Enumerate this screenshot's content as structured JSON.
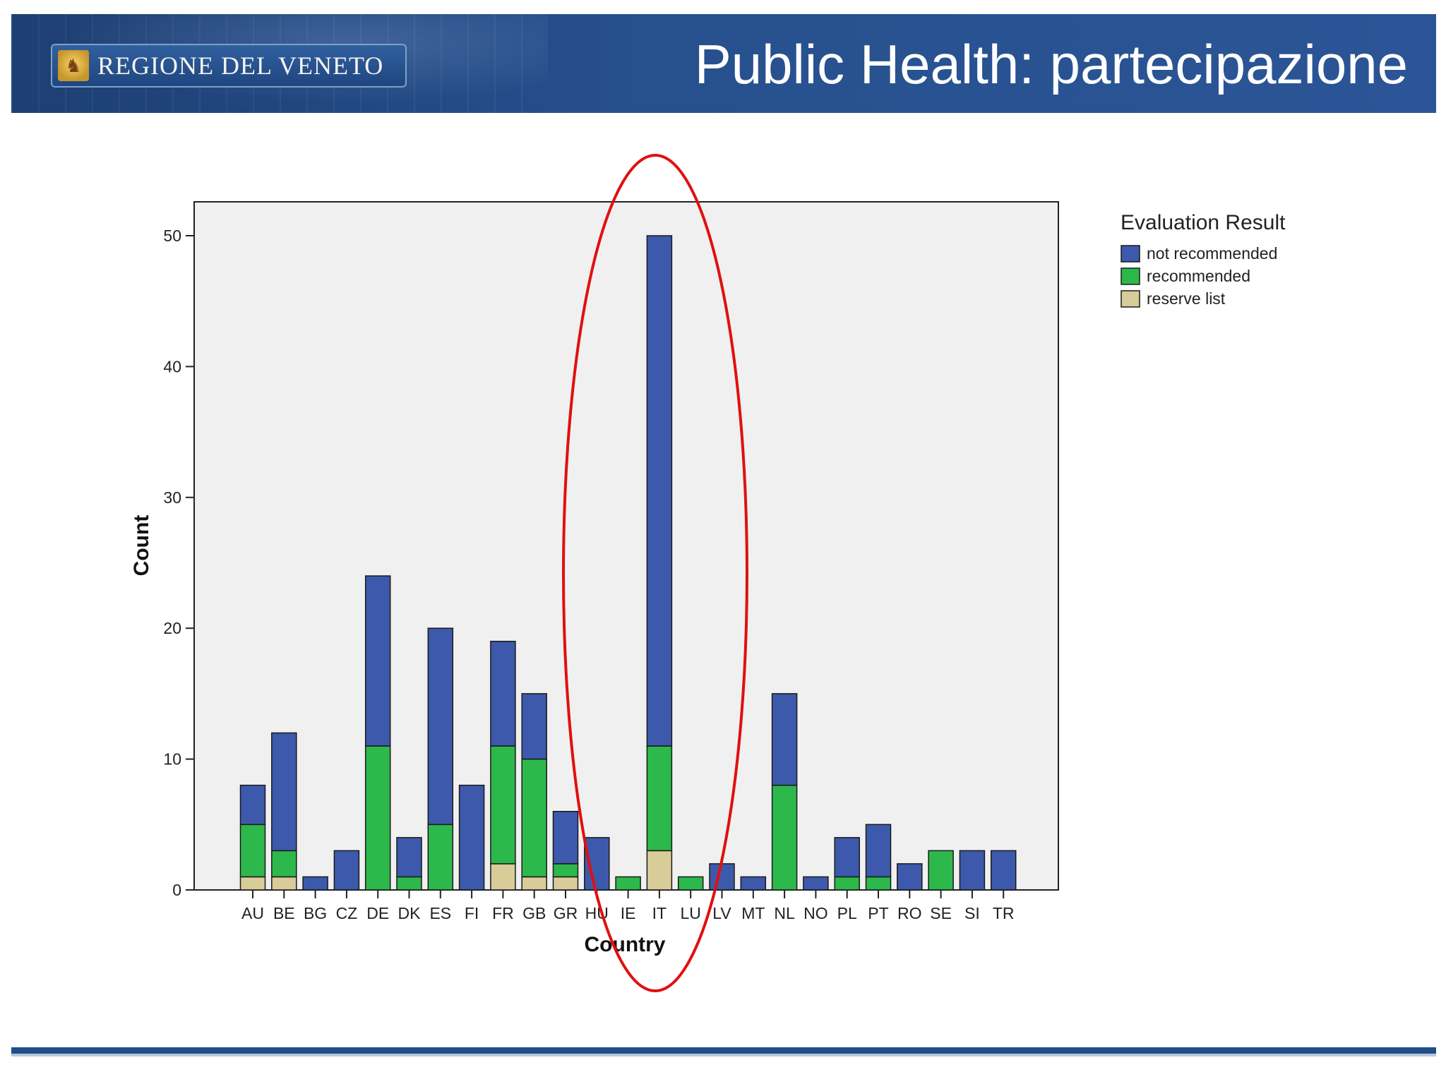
{
  "header": {
    "logo_text": "REGIONE DEL VENETO",
    "title": "Public Health: partecipazione"
  },
  "colors": {
    "header_bg": "#27508e",
    "not_recommended": "#3d59ab",
    "recommended": "#2db84b",
    "reserve_list": "#d8cc98",
    "highlight": "#e01010",
    "plot_bg": "#f0f0f0"
  },
  "chart_data": {
    "type": "bar",
    "stacked": true,
    "xlabel": "Country",
    "ylabel": "Count",
    "ylim": [
      0,
      52
    ],
    "yticks": [
      0,
      10,
      20,
      30,
      40,
      50
    ],
    "categories": [
      "AU",
      "BE",
      "BG",
      "CZ",
      "DE",
      "DK",
      "ES",
      "FI",
      "FR",
      "GB",
      "GR",
      "HU",
      "IE",
      "IT",
      "LU",
      "LV",
      "MT",
      "NL",
      "NO",
      "PL",
      "PT",
      "RO",
      "SE",
      "SI",
      "TR"
    ],
    "legend": {
      "title": "Evaluation Result",
      "position": "right"
    },
    "series": [
      {
        "name": "reserve list",
        "color": "#d8cc98",
        "values": [
          1,
          1,
          0,
          0,
          0,
          0,
          0,
          0,
          2,
          1,
          1,
          0,
          0,
          3,
          0,
          0,
          0,
          0,
          0,
          0,
          0,
          0,
          0,
          0,
          0
        ]
      },
      {
        "name": "recommended",
        "color": "#2db84b",
        "values": [
          4,
          2,
          0,
          0,
          11,
          1,
          5,
          0,
          9,
          9,
          1,
          0,
          1,
          8,
          1,
          0,
          0,
          8,
          0,
          1,
          1,
          0,
          3,
          0,
          0
        ]
      },
      {
        "name": "not recommended",
        "color": "#3d59ab",
        "values": [
          3,
          9,
          1,
          3,
          13,
          3,
          15,
          8,
          8,
          5,
          4,
          4,
          0,
          39,
          0,
          2,
          1,
          7,
          1,
          3,
          4,
          2,
          0,
          3,
          3
        ]
      }
    ],
    "legend_order": [
      "not recommended",
      "recommended",
      "reserve list"
    ],
    "annotation": {
      "shape": "ellipse",
      "highlights": "IT",
      "color": "#e01010"
    }
  }
}
